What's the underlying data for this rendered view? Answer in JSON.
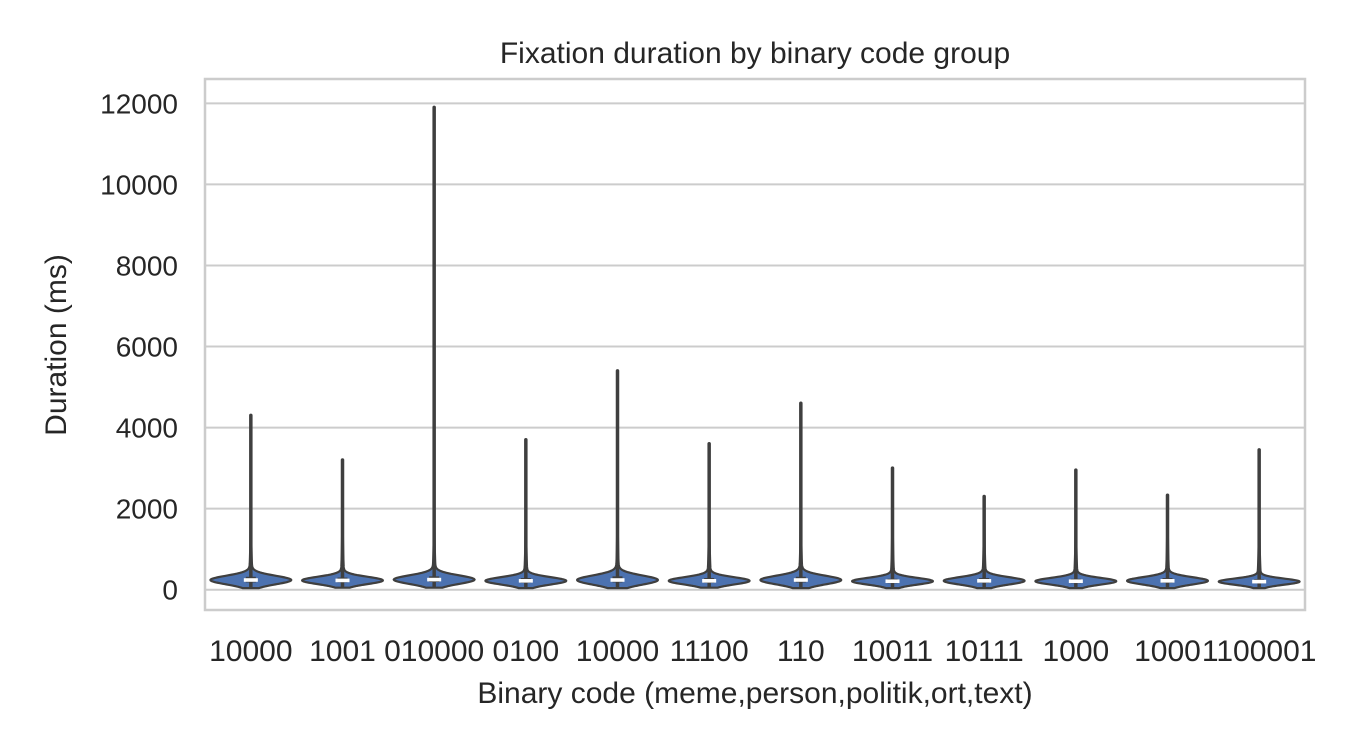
{
  "chart_data": {
    "type": "violin",
    "title": "Fixation duration by binary code group",
    "xlabel": "Binary code (meme,person,politik,ort,text)",
    "ylabel": "Duration (ms)",
    "ylim": [
      -500,
      12600
    ],
    "yticks": [
      0,
      2000,
      4000,
      6000,
      8000,
      10000,
      12000
    ],
    "grid": true,
    "colors": {
      "violin_fill": "#4c72b0",
      "violin_edge": "#3f3f3f",
      "grid": "#cccccc",
      "median": "#ffffff"
    },
    "categories": [
      "10000",
      "1001",
      "010000",
      "0100",
      "10000",
      "11100",
      "110",
      "10011",
      "10111",
      "1000",
      "1000",
      "1100001"
    ],
    "groups": [
      {
        "category": "10000",
        "min": 80,
        "q1": 180,
        "median": 240,
        "q3": 320,
        "max": 4300
      },
      {
        "category": "1001",
        "min": 90,
        "q1": 180,
        "median": 230,
        "q3": 300,
        "max": 3200
      },
      {
        "category": "010000",
        "min": 90,
        "q1": 190,
        "median": 250,
        "q3": 330,
        "max": 11900
      },
      {
        "category": "0100",
        "min": 80,
        "q1": 170,
        "median": 220,
        "q3": 290,
        "max": 3700
      },
      {
        "category": "10000",
        "min": 80,
        "q1": 180,
        "median": 240,
        "q3": 330,
        "max": 5400
      },
      {
        "category": "11100",
        "min": 90,
        "q1": 170,
        "median": 220,
        "q3": 290,
        "max": 3600
      },
      {
        "category": "110",
        "min": 80,
        "q1": 180,
        "median": 240,
        "q3": 320,
        "max": 4600
      },
      {
        "category": "10011",
        "min": 80,
        "q1": 160,
        "median": 210,
        "q3": 270,
        "max": 3000
      },
      {
        "category": "10111",
        "min": 80,
        "q1": 170,
        "median": 220,
        "q3": 290,
        "max": 2300
      },
      {
        "category": "1000",
        "min": 80,
        "q1": 160,
        "median": 210,
        "q3": 270,
        "max": 2950
      },
      {
        "category": "1000",
        "min": 80,
        "q1": 170,
        "median": 220,
        "q3": 290,
        "max": 2330
      },
      {
        "category": "1100001",
        "min": 80,
        "q1": 160,
        "median": 200,
        "q3": 260,
        "max": 3450
      }
    ]
  }
}
